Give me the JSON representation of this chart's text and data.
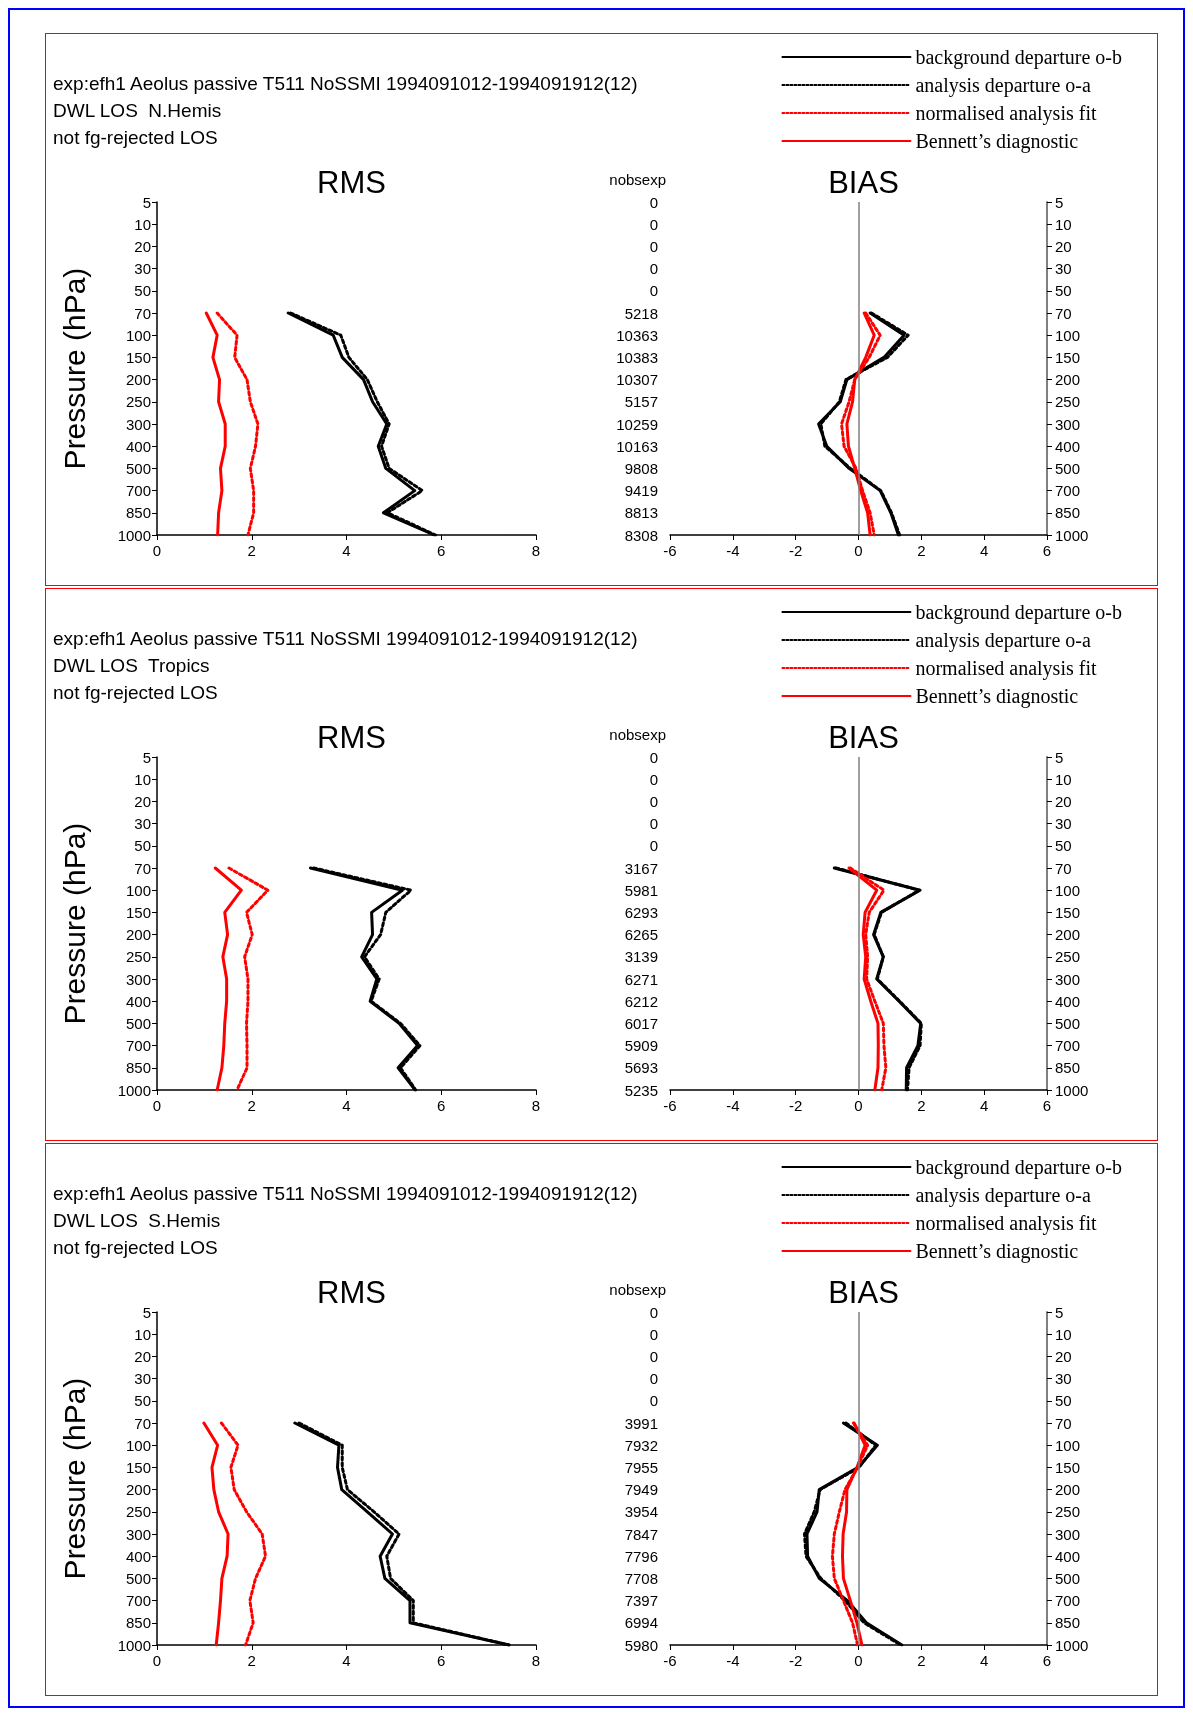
{
  "chart_data": [
    {
      "type": "line",
      "title": "RMS",
      "annotations": [
        "exp:efh1 Aeolus passive T511 NoSSMI 1994091012-1994091912(12)",
        "DWL LOS  N.Hemis",
        "not fg-rejected LOS"
      ],
      "ylabel": "Pressure (hPa)",
      "orientation": "horizontal",
      "categories": [
        "5",
        "10",
        "20",
        "30",
        "50",
        "70",
        "100",
        "150",
        "200",
        "250",
        "300",
        "400",
        "500",
        "700",
        "850",
        "1000"
      ],
      "xlim": [
        0,
        8
      ],
      "xticks": [
        0,
        2,
        4,
        6,
        8
      ],
      "grid": false,
      "legend": false,
      "marker": "none",
      "series": [
        {
          "color": "#000000",
          "line_style": "solid",
          "values": [
            null,
            null,
            null,
            null,
            null,
            2.77,
            3.72,
            3.91,
            4.36,
            4.55,
            4.85,
            4.67,
            4.83,
            5.44,
            4.78,
            5.85
          ]
        },
        {
          "color": "#000000",
          "line_style": "dotted",
          "values": [
            null,
            null,
            null,
            null,
            null,
            2.82,
            3.88,
            4.05,
            4.44,
            4.65,
            4.9,
            4.74,
            4.9,
            5.6,
            4.86,
            5.88
          ]
        },
        {
          "color": "#ff0000",
          "line_style": "dotted",
          "values": [
            null,
            null,
            null,
            null,
            null,
            1.27,
            1.69,
            1.64,
            1.9,
            1.97,
            2.13,
            2.08,
            1.97,
            2.04,
            2.04,
            1.92
          ]
        },
        {
          "color": "#ff0000",
          "line_style": "solid",
          "values": [
            null,
            null,
            null,
            null,
            null,
            1.04,
            1.27,
            1.18,
            1.32,
            1.3,
            1.44,
            1.44,
            1.34,
            1.37,
            1.3,
            1.28
          ]
        }
      ]
    },
    {
      "type": "line",
      "title": "BIAS",
      "ylabel": "nobsexp",
      "orientation": "horizontal",
      "categories": [
        "0",
        "0",
        "0",
        "0",
        "0",
        "5218",
        "10363",
        "10383",
        "10307",
        "5157",
        "10259",
        "10163",
        "9808",
        "9419",
        "8813",
        "8308"
      ],
      "y2_categories": [
        "5",
        "10",
        "20",
        "30",
        "50",
        "70",
        "100",
        "150",
        "200",
        "250",
        "300",
        "400",
        "500",
        "700",
        "850",
        "1000"
      ],
      "xlim": [
        -6,
        6
      ],
      "xticks": [
        -6,
        -4,
        -2,
        0,
        2,
        4,
        6
      ],
      "grid": false,
      "legend": "top right",
      "marker": "none",
      "ref_lines": [
        {
          "axis": "x",
          "value": 0,
          "color": "#808080"
        }
      ],
      "series": [
        {
          "name": "background departure o-b",
          "color": "#000000",
          "line_style": "solid",
          "values": [
            null,
            null,
            null,
            null,
            null,
            0.37,
            1.45,
            0.81,
            -0.37,
            -0.58,
            -1.27,
            -1.01,
            -0.3,
            0.69,
            1.03,
            1.27
          ]
        },
        {
          "name": "analysis departure o-a",
          "color": "#000000",
          "line_style": "dotted",
          "values": [
            null,
            null,
            null,
            null,
            null,
            0.41,
            1.58,
            0.92,
            -0.4,
            -0.61,
            -1.2,
            -1.07,
            -0.26,
            0.71,
            1.05,
            1.31
          ]
        },
        {
          "name": "normalised analysis fit",
          "color": "#ff0000",
          "line_style": "dotted",
          "values": [
            null,
            null,
            null,
            null,
            null,
            0.23,
            0.69,
            0.34,
            -0.12,
            -0.3,
            -0.54,
            -0.46,
            -0.08,
            0.13,
            0.37,
            0.5
          ]
        },
        {
          "name": "Bennett’s diagnostic",
          "color": "#ff0000",
          "line_style": "solid",
          "values": [
            null,
            null,
            null,
            null,
            null,
            0.18,
            0.5,
            0.23,
            -0.12,
            -0.19,
            -0.37,
            -0.32,
            -0.12,
            0.07,
            0.29,
            0.37
          ]
        }
      ]
    },
    {
      "type": "line",
      "title": "RMS",
      "annotations": [
        "exp:efh1 Aeolus passive T511 NoSSMI 1994091012-1994091912(12)",
        "DWL LOS  Tropics",
        "not fg-rejected LOS"
      ],
      "ylabel": "Pressure (hPa)",
      "orientation": "horizontal",
      "categories": [
        "5",
        "10",
        "20",
        "30",
        "50",
        "70",
        "100",
        "150",
        "200",
        "250",
        "300",
        "400",
        "500",
        "700",
        "850",
        "1000"
      ],
      "xlim": [
        0,
        8
      ],
      "xticks": [
        0,
        2,
        4,
        6,
        8
      ],
      "grid": false,
      "legend": false,
      "marker": "none",
      "series": [
        {
          "color": "#000000",
          "line_style": "solid",
          "values": [
            null,
            null,
            null,
            null,
            null,
            3.24,
            5.18,
            4.53,
            4.55,
            4.32,
            4.64,
            4.5,
            5.11,
            5.5,
            5.09,
            5.45
          ]
        },
        {
          "color": "#000000",
          "line_style": "dotted",
          "values": [
            null,
            null,
            null,
            null,
            null,
            3.31,
            5.36,
            4.83,
            4.72,
            4.38,
            4.69,
            4.52,
            5.14,
            5.55,
            5.14,
            5.46
          ]
        },
        {
          "color": "#ff0000",
          "line_style": "dotted",
          "values": [
            null,
            null,
            null,
            null,
            null,
            1.52,
            2.34,
            1.89,
            2.01,
            1.85,
            1.92,
            1.92,
            1.89,
            1.9,
            1.9,
            1.69
          ]
        },
        {
          "color": "#ff0000",
          "line_style": "solid",
          "values": [
            null,
            null,
            null,
            null,
            null,
            1.23,
            1.78,
            1.43,
            1.49,
            1.39,
            1.47,
            1.47,
            1.43,
            1.41,
            1.37,
            1.27
          ]
        }
      ]
    },
    {
      "type": "line",
      "title": "BIAS",
      "ylabel": "nobsexp",
      "orientation": "horizontal",
      "categories": [
        "0",
        "0",
        "0",
        "0",
        "0",
        "3167",
        "5981",
        "6293",
        "6265",
        "3139",
        "6271",
        "6212",
        "6017",
        "5909",
        "5693",
        "5235"
      ],
      "y2_categories": [
        "5",
        "10",
        "20",
        "30",
        "50",
        "70",
        "100",
        "150",
        "200",
        "250",
        "300",
        "400",
        "500",
        "700",
        "850",
        "1000"
      ],
      "xlim": [
        -6,
        6
      ],
      "xticks": [
        -6,
        -4,
        -2,
        0,
        2,
        4,
        6
      ],
      "grid": false,
      "legend": "top right",
      "marker": "none",
      "ref_lines": [
        {
          "axis": "x",
          "value": 0,
          "color": "#808080"
        }
      ],
      "series": [
        {
          "name": "background departure o-b",
          "color": "#000000",
          "line_style": "solid",
          "values": [
            null,
            null,
            null,
            null,
            null,
            -0.77,
            1.96,
            0.71,
            0.48,
            0.79,
            0.58,
            1.29,
            1.98,
            1.89,
            1.53,
            1.52
          ]
        },
        {
          "name": "analysis departure o-a",
          "color": "#000000",
          "line_style": "dotted",
          "values": [
            null,
            null,
            null,
            null,
            null,
            -0.72,
            1.93,
            0.73,
            0.5,
            0.79,
            0.6,
            1.31,
            2.0,
            1.96,
            1.61,
            1.56
          ]
        },
        {
          "name": "normalised analysis fit",
          "color": "#ff0000",
          "line_style": "dotted",
          "values": [
            null,
            null,
            null,
            null,
            null,
            -0.26,
            0.81,
            0.34,
            0.23,
            0.29,
            0.26,
            0.52,
            0.79,
            0.81,
            0.87,
            0.74
          ]
        },
        {
          "name": "Bennett’s diagnostic",
          "color": "#ff0000",
          "line_style": "solid",
          "values": [
            null,
            null,
            null,
            null,
            null,
            -0.3,
            0.58,
            0.21,
            0.15,
            0.23,
            0.18,
            0.39,
            0.62,
            0.63,
            0.62,
            0.52
          ]
        }
      ]
    },
    {
      "type": "line",
      "title": "RMS",
      "annotations": [
        "exp:efh1 Aeolus passive T511 NoSSMI 1994091012-1994091912(12)",
        "DWL LOS  S.Hemis",
        "not fg-rejected LOS"
      ],
      "ylabel": "Pressure (hPa)",
      "orientation": "horizontal",
      "categories": [
        "5",
        "10",
        "20",
        "30",
        "50",
        "70",
        "100",
        "150",
        "200",
        "250",
        "300",
        "400",
        "500",
        "700",
        "850",
        "1000"
      ],
      "xlim": [
        0,
        8
      ],
      "xticks": [
        0,
        2,
        4,
        6,
        8
      ],
      "grid": false,
      "legend": false,
      "marker": "none",
      "series": [
        {
          "color": "#000000",
          "line_style": "solid",
          "values": [
            null,
            null,
            null,
            null,
            null,
            2.91,
            3.84,
            3.81,
            3.9,
            4.44,
            4.97,
            4.71,
            4.81,
            5.34,
            5.34,
            7.43
          ]
        },
        {
          "color": "#000000",
          "line_style": "dotted",
          "values": [
            null,
            null,
            null,
            null,
            null,
            3.0,
            3.91,
            3.91,
            4.02,
            4.58,
            5.11,
            4.85,
            4.93,
            5.41,
            5.41,
            7.43
          ]
        },
        {
          "color": "#ff0000",
          "line_style": "dotted",
          "values": [
            null,
            null,
            null,
            null,
            null,
            1.36,
            1.71,
            1.56,
            1.63,
            1.89,
            2.22,
            2.29,
            2.08,
            1.96,
            2.03,
            1.87
          ]
        },
        {
          "color": "#ff0000",
          "line_style": "solid",
          "values": [
            null,
            null,
            null,
            null,
            null,
            0.99,
            1.28,
            1.16,
            1.2,
            1.3,
            1.5,
            1.48,
            1.37,
            1.34,
            1.3,
            1.25
          ]
        }
      ]
    },
    {
      "type": "line",
      "title": "BIAS",
      "ylabel": "nobsexp",
      "orientation": "horizontal",
      "categories": [
        "0",
        "0",
        "0",
        "0",
        "0",
        "3991",
        "7932",
        "7955",
        "7949",
        "3954",
        "7847",
        "7796",
        "7708",
        "7397",
        "6994",
        "5980"
      ],
      "y2_categories": [
        "5",
        "10",
        "20",
        "30",
        "50",
        "70",
        "100",
        "150",
        "200",
        "250",
        "300",
        "400",
        "500",
        "700",
        "850",
        "1000"
      ],
      "xlim": [
        -6,
        6
      ],
      "xticks": [
        -6,
        -4,
        -2,
        0,
        2,
        4,
        6
      ],
      "grid": false,
      "legend": "top right",
      "marker": "none",
      "ref_lines": [
        {
          "axis": "x",
          "value": 0,
          "color": "#808080"
        }
      ],
      "series": [
        {
          "name": "background departure o-b",
          "color": "#000000",
          "line_style": "solid",
          "values": [
            null,
            null,
            null,
            null,
            null,
            -0.48,
            0.6,
            -0.01,
            -1.25,
            -1.32,
            -1.64,
            -1.62,
            -1.25,
            -0.35,
            0.25,
            1.38
          ]
        },
        {
          "name": "analysis departure o-a",
          "color": "#000000",
          "line_style": "dotted",
          "values": [
            null,
            null,
            null,
            null,
            null,
            -0.4,
            0.55,
            0.02,
            -1.22,
            -1.41,
            -1.72,
            -1.67,
            -1.2,
            -0.43,
            0.18,
            1.34
          ]
        },
        {
          "name": "normalised analysis fit",
          "color": "#ff0000",
          "line_style": "dotted",
          "values": [
            null,
            null,
            null,
            null,
            null,
            -0.16,
            0.29,
            -0.03,
            -0.43,
            -0.61,
            -0.77,
            -0.83,
            -0.77,
            -0.48,
            -0.19,
            -0.03
          ]
        },
        {
          "name": "Bennett’s diagnostic",
          "color": "#ff0000",
          "line_style": "solid",
          "values": [
            null,
            null,
            null,
            null,
            null,
            -0.14,
            0.21,
            -0.05,
            -0.37,
            -0.38,
            -0.49,
            -0.51,
            -0.48,
            -0.26,
            -0.05,
            0.11
          ]
        }
      ]
    }
  ]
}
